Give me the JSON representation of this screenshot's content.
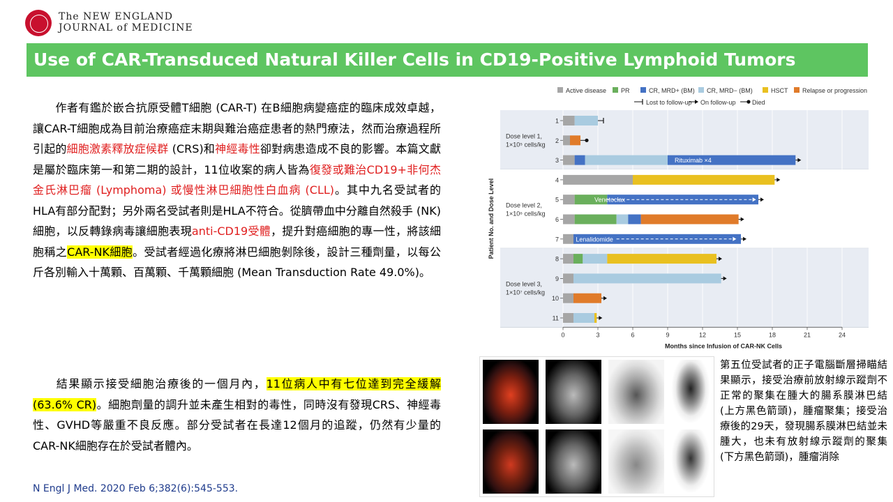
{
  "journal": {
    "line1": "The NEW ENGLAND",
    "line2": "JOURNAL of MEDICINE"
  },
  "title": "Use of CAR-Transduced Natural Killer Cells in CD19-Positive Lymphoid Tumors",
  "paragraph1": [
    {
      "t": "作者有鑑於嵌合抗原受體T細胞 (CAR-T) 在B細胞病變癌症的臨床成效卓越，讓CAR-T細胞成為目前治療癌症末期與難治癌症患者的熱門療法，然而治療過程所引起的",
      "s": ""
    },
    {
      "t": "細胞激素釋放症候群",
      "s": "red"
    },
    {
      "t": " (CRS)和",
      "s": ""
    },
    {
      "t": "神經毒性",
      "s": "red"
    },
    {
      "t": "卻對病患造成不良的影響。本篇文獻是屬於臨床第一和第二期的設計，11位收案的病人皆為",
      "s": ""
    },
    {
      "t": "復發或難治CD19+非何杰金氏淋巴瘤 (Lymphoma) 或慢性淋巴細胞性白血病 (CLL)",
      "s": "red"
    },
    {
      "t": "。其中九名受試者的HLA有部分配對；另外兩名受試者則是HLA不符合。從臍帶血中分離自然殺手 (NK) 細胞，以反轉錄病毒讓細胞表現",
      "s": ""
    },
    {
      "t": "anti-CD19受體",
      "s": "red"
    },
    {
      "t": "，提升對癌細胞的專一性，將該細胞稱之",
      "s": ""
    },
    {
      "t": "CAR-NK細胞",
      "s": "hl"
    },
    {
      "t": "。受試者經過化療將淋巴細胞剝除後，設計三種劑量，以每公斤各別輸入十萬顆、百萬顆、千萬顆細胞 (Mean Transduction Rate 49.0%)。",
      "s": ""
    }
  ],
  "paragraph2": [
    {
      "t": "結果顯示接受細胞治療後的一個月內，",
      "s": ""
    },
    {
      "t": "11位病人中有七位達到完全緩解 (63.6% CR)",
      "s": "hl"
    },
    {
      "t": "。細胞劑量的調升並未產生相對的毒性，同時沒有發現CRS、神經毒性、GVHD等嚴重不良反應。部分受試者在長達12個月的追蹤，仍然有少量的CAR-NK細胞存在於受試者體內。",
      "s": ""
    }
  ],
  "citation": "N Engl J Med. 2020 Feb 6;382(6):545-553.",
  "caption": "第五位受試者的正子電腦斷層掃瞄結果顯示，接受治療前放射線示蹤劑不正常的聚集在腫大的腸系膜淋巴結 (上方黑色箭頭)，腫瘤聚集；接受治療後的29天，發現腸系膜淋巴結並未腫大，也未有放射線示蹤劑的聚集 (下方黑色箭頭)，腫瘤消除",
  "chart_data": {
    "type": "bar",
    "orientation": "horizontal-stacked",
    "xlabel": "Months since Infusion of CAR-NK Cells",
    "ylabel": "Patient No. and Dose Level",
    "xlim": [
      0,
      24
    ],
    "xticks": [
      0,
      3,
      6,
      9,
      12,
      15,
      18,
      21,
      24
    ],
    "legend": [
      {
        "name": "Active disease",
        "color": "#a6a6a6"
      },
      {
        "name": "PR",
        "color": "#6aaf5c"
      },
      {
        "name": "CR, MRD+ (BM)",
        "color": "#4472c4"
      },
      {
        "name": "CR, MRD− (BM)",
        "color": "#a9cbe0"
      },
      {
        "name": "HSCT",
        "color": "#e9c020"
      },
      {
        "name": "Relapse or progression",
        "color": "#e07b2a"
      }
    ],
    "markers_legend": [
      "Lost to follow-up",
      "On follow-up",
      "Died"
    ],
    "groups": [
      {
        "label1": "Dose level 1,",
        "label2": "1×10⁵ cells/kg",
        "patients": [
          "1",
          "2",
          "3"
        ]
      },
      {
        "label1": "Dose level 2,",
        "label2": "1×10⁶ cells/kg",
        "patients": [
          "4",
          "5",
          "6",
          "7"
        ]
      },
      {
        "label1": "Dose level 3,",
        "label2": "1×10⁷ cells/kg",
        "patients": [
          "8",
          "9",
          "10",
          "11"
        ]
      }
    ],
    "patients": [
      {
        "id": "1",
        "end": "lost",
        "segments": [
          [
            0,
            1,
            "Active disease"
          ],
          [
            1,
            3,
            "CR, MRD− (BM)"
          ]
        ]
      },
      {
        "id": "2",
        "end": "died",
        "segments": [
          [
            0,
            0.6,
            "Active disease"
          ],
          [
            0.6,
            1.5,
            "Relapse or progression"
          ]
        ]
      },
      {
        "id": "3",
        "end": "on",
        "annotation": "Rituximab ×4",
        "annotation_x": 9.6,
        "segments": [
          [
            0,
            1,
            "Active disease"
          ],
          [
            1,
            1.9,
            "CR, MRD+ (BM)"
          ],
          [
            1.9,
            9,
            "CR, MRD− (BM)"
          ],
          [
            9,
            20,
            "CR, MRD+ (BM)"
          ]
        ]
      },
      {
        "id": "4",
        "end": "on",
        "segments": [
          [
            0,
            6,
            "Active disease"
          ],
          [
            6,
            18.2,
            "HSCT"
          ]
        ]
      },
      {
        "id": "5",
        "end": "on",
        "annotation": "Venetoclax",
        "annotation_x": 2.7,
        "dashed_from": 3.8,
        "dashed_to": 16.3,
        "segments": [
          [
            0,
            1,
            "Active disease"
          ],
          [
            1,
            3.8,
            "PR"
          ],
          [
            3.8,
            16.8,
            "CR, MRD+ (BM)"
          ]
        ]
      },
      {
        "id": "6",
        "end": "on",
        "segments": [
          [
            0,
            1,
            "Active disease"
          ],
          [
            1,
            4.6,
            "PR"
          ],
          [
            4.6,
            5.6,
            "CR, MRD− (BM)"
          ],
          [
            5.6,
            6.7,
            "CR, MRD+ (BM)"
          ],
          [
            6.7,
            15.1,
            "Relapse or progression"
          ]
        ]
      },
      {
        "id": "7",
        "end": "on",
        "annotation": "Lenalidomide",
        "annotation_x": 1.1,
        "dashed_from": 4.6,
        "dashed_to": 14.6,
        "segments": [
          [
            0,
            0.9,
            "Active disease"
          ],
          [
            0.9,
            15.3,
            "CR, MRD+ (BM)"
          ]
        ]
      },
      {
        "id": "8",
        "end": "on",
        "segments": [
          [
            0,
            0.9,
            "Active disease"
          ],
          [
            0.9,
            1.7,
            "PR"
          ],
          [
            1.7,
            3.8,
            "CR, MRD− (BM)"
          ],
          [
            3.8,
            13.2,
            "HSCT"
          ]
        ]
      },
      {
        "id": "9",
        "end": "on",
        "segments": [
          [
            0,
            0.9,
            "Active disease"
          ],
          [
            0.9,
            13.6,
            "CR, MRD− (BM)"
          ]
        ]
      },
      {
        "id": "10",
        "end": "on",
        "segments": [
          [
            0,
            0.9,
            "Active disease"
          ],
          [
            0.9,
            3.3,
            "Relapse or progression"
          ]
        ]
      },
      {
        "id": "11",
        "end": "on",
        "segments": [
          [
            0,
            0.9,
            "Active disease"
          ],
          [
            0.9,
            2.7,
            "CR, MRD− (BM)"
          ],
          [
            2.7,
            2.9,
            "HSCT"
          ]
        ]
      }
    ]
  }
}
